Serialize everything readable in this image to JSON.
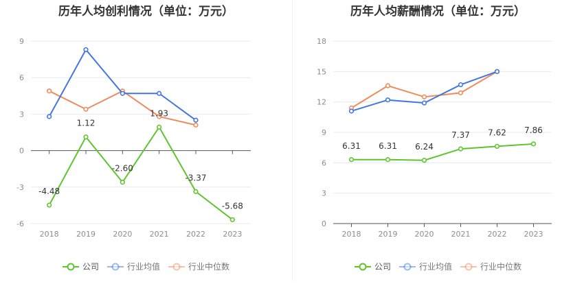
{
  "chart_data": [
    {
      "type": "line",
      "title": "历年人均创利情况（单位：万元）",
      "categories": [
        "2018",
        "2019",
        "2020",
        "2021",
        "2022",
        "2023"
      ],
      "yticks": [
        "9",
        "6",
        "3",
        "0",
        "-3",
        "-6"
      ],
      "ylim": [
        -6,
        9
      ],
      "grid": true,
      "legend_position": "bottom",
      "series": [
        {
          "name": "公司",
          "color": "#5cc52c",
          "values": [
            -4.48,
            1.12,
            -2.6,
            1.93,
            -3.37,
            -5.68
          ],
          "labels": [
            "-4.48",
            "1.12",
            "-2.60",
            "1.93",
            "-3.37",
            "-5.68"
          ]
        },
        {
          "name": "行业均值",
          "color": "#3f76e1",
          "values": [
            2.8,
            8.3,
            4.7,
            4.7,
            2.5,
            null
          ]
        },
        {
          "name": "行业中位数",
          "color": "#f08a5a",
          "values": [
            4.9,
            3.4,
            4.9,
            2.8,
            2.1,
            null
          ]
        }
      ]
    },
    {
      "type": "line",
      "title": "历年人均薪酬情况（单位：万元）",
      "categories": [
        "2018",
        "2019",
        "2020",
        "2021",
        "2022",
        "2023"
      ],
      "yticks": [
        "18",
        "15",
        "12",
        "9",
        "6",
        "3",
        "0"
      ],
      "ylim": [
        0,
        18
      ],
      "grid": true,
      "legend_position": "bottom",
      "series": [
        {
          "name": "公司",
          "color": "#5cc52c",
          "values": [
            6.31,
            6.31,
            6.24,
            7.37,
            7.62,
            7.86
          ],
          "labels": [
            "6.31",
            "6.31",
            "6.24",
            "7.37",
            "7.62",
            "7.86"
          ]
        },
        {
          "name": "行业均值",
          "color": "#3f76e1",
          "values": [
            11.1,
            12.2,
            11.9,
            13.7,
            15.0,
            null
          ]
        },
        {
          "name": "行业中位数",
          "color": "#f08a5a",
          "values": [
            11.4,
            13.6,
            12.5,
            12.9,
            15.0,
            null
          ]
        }
      ]
    }
  ]
}
